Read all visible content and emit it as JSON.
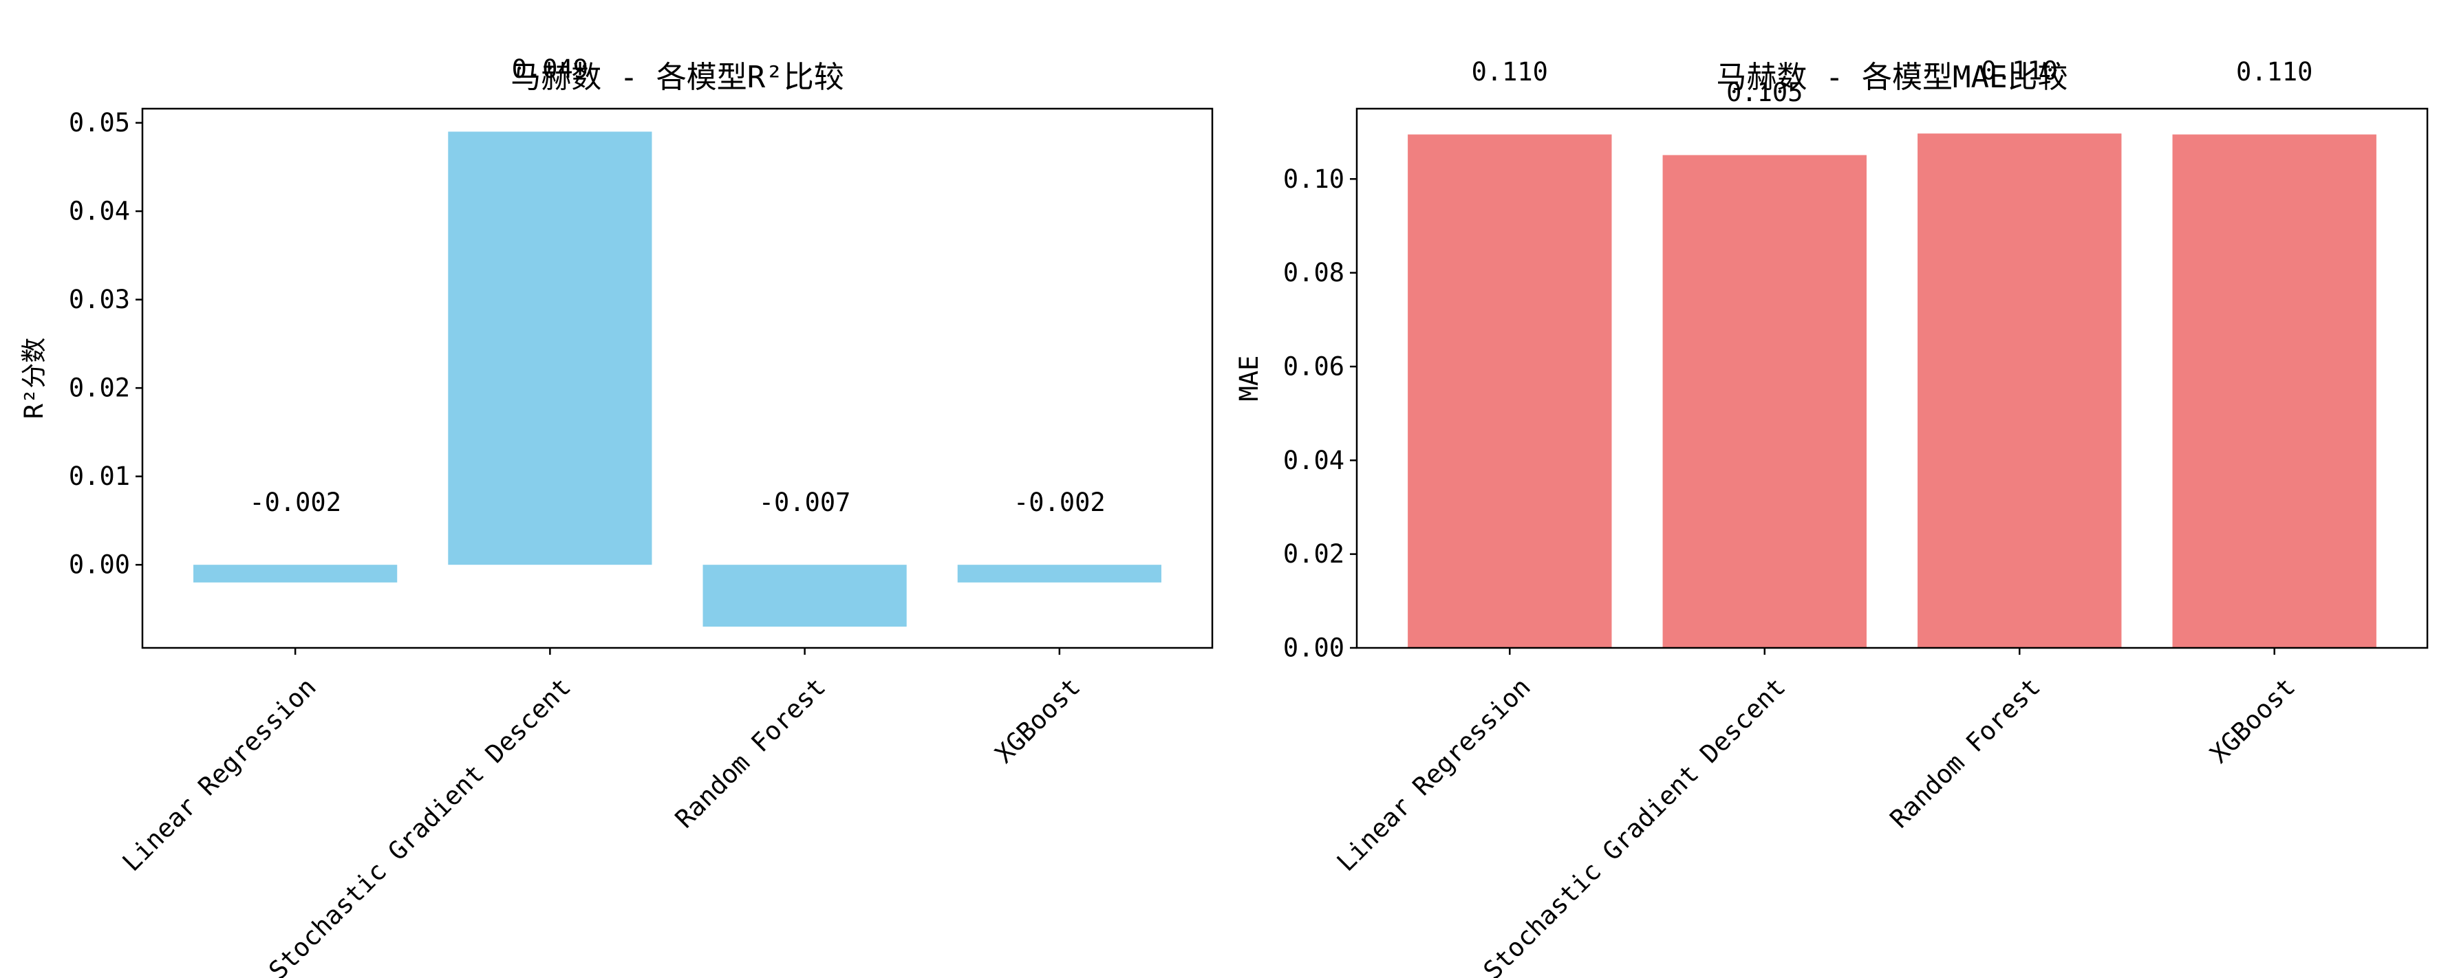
{
  "chart_data": [
    {
      "type": "bar",
      "title": "马赫数 - 各模型R²比较",
      "xlabel": "",
      "ylabel": "R²分数",
      "categories": [
        "Linear Regression",
        "Stochastic Gradient Descent",
        "Random Forest",
        "XGBoost"
      ],
      "values": [
        -0.002,
        0.049,
        -0.007,
        -0.002
      ],
      "value_labels": [
        "-0.002",
        "0.049",
        "-0.007",
        "-0.002"
      ],
      "ylim": [
        -0.0094,
        0.0516
      ],
      "yticks": [
        0.0,
        0.01,
        0.02,
        0.03,
        0.04,
        0.05
      ],
      "ytick_labels": [
        "0.00",
        "0.01",
        "0.02",
        "0.03",
        "0.04",
        "0.05"
      ],
      "color": "#87CEEB",
      "grid": false
    },
    {
      "type": "bar",
      "title": "马赫数 - 各模型MAE比较",
      "xlabel": "",
      "ylabel": "MAE",
      "categories": [
        "Linear Regression",
        "Stochastic Gradient Descent",
        "Random Forest",
        "XGBoost"
      ],
      "values": [
        0.1095,
        0.1051,
        0.1097,
        0.1095
      ],
      "value_labels": [
        "0.110",
        "0.105",
        "0.110",
        "0.110"
      ],
      "ylim": [
        0.0,
        0.115
      ],
      "yticks": [
        0.0,
        0.02,
        0.04,
        0.06,
        0.08,
        0.1
      ],
      "ytick_labels": [
        "0.00",
        "0.02",
        "0.04",
        "0.06",
        "0.08",
        "0.10"
      ],
      "color": "#F08080",
      "grid": false
    }
  ]
}
